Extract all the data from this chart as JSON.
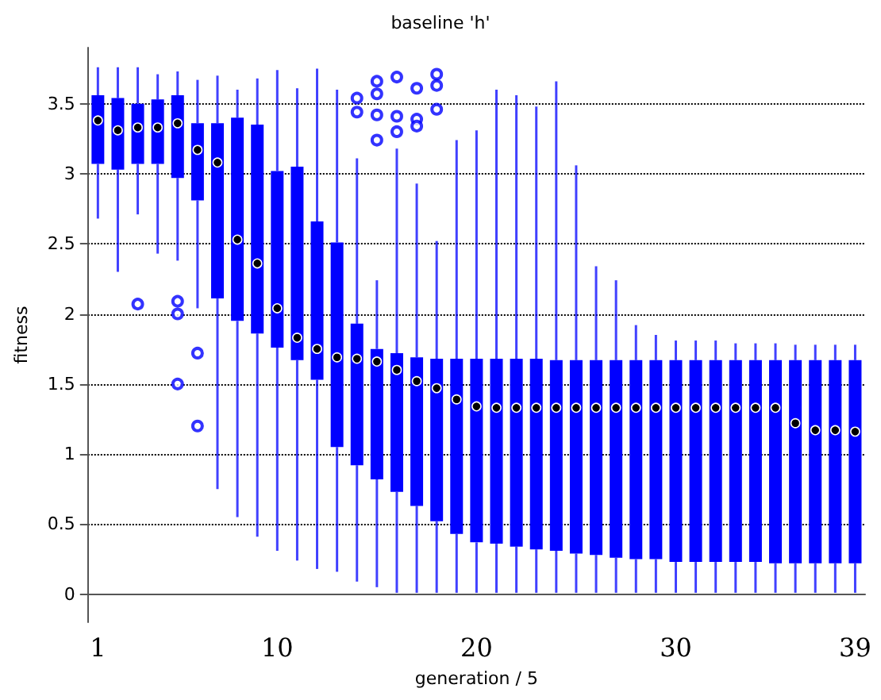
{
  "chart_data": {
    "type": "box",
    "title": "baseline 'h'",
    "xlabel": "generation / 5",
    "ylabel": "fitness",
    "categories": [
      "1",
      null,
      null,
      null,
      null,
      null,
      null,
      null,
      null,
      "10",
      null,
      null,
      null,
      null,
      null,
      null,
      null,
      null,
      null,
      "20",
      null,
      null,
      null,
      null,
      null,
      null,
      null,
      null,
      null,
      "30",
      null,
      null,
      null,
      null,
      null,
      null,
      null,
      null,
      "39"
    ],
    "color": "#0000ff",
    "grid": "y",
    "ylim": [
      -0.2,
      3.9
    ],
    "yticks": [
      0,
      0.5,
      1,
      1.5,
      2,
      2.5,
      3,
      3.5
    ],
    "boxes": [
      {
        "low": 2.68,
        "q1": 3.07,
        "median": 3.38,
        "q3": 3.56,
        "high": 3.76
      },
      {
        "low": 2.3,
        "q1": 3.03,
        "median": 3.31,
        "q3": 3.54,
        "high": 3.76
      },
      {
        "low": 2.71,
        "q1": 3.07,
        "median": 3.33,
        "q3": 3.5,
        "high": 3.76,
        "outliers": [
          2.07
        ]
      },
      {
        "low": 2.43,
        "q1": 3.07,
        "median": 3.33,
        "q3": 3.53,
        "high": 3.71
      },
      {
        "low": 2.38,
        "q1": 2.97,
        "median": 3.36,
        "q3": 3.56,
        "high": 3.73,
        "outliers": [
          2.09,
          2.0,
          1.5
        ]
      },
      {
        "low": 2.04,
        "q1": 2.81,
        "median": 3.17,
        "q3": 3.36,
        "high": 3.67,
        "outliers": [
          1.72,
          1.2
        ]
      },
      {
        "low": 0.75,
        "q1": 2.11,
        "median": 3.08,
        "q3": 3.36,
        "high": 3.7
      },
      {
        "low": 0.55,
        "q1": 1.95,
        "median": 2.53,
        "q3": 3.4,
        "high": 3.6
      },
      {
        "low": 0.41,
        "q1": 1.86,
        "median": 2.36,
        "q3": 3.35,
        "high": 3.68
      },
      {
        "low": 0.31,
        "q1": 1.76,
        "median": 2.04,
        "q3": 3.02,
        "high": 3.74
      },
      {
        "low": 0.24,
        "q1": 1.67,
        "median": 1.83,
        "q3": 3.05,
        "high": 3.61
      },
      {
        "low": 0.18,
        "q1": 1.53,
        "median": 1.75,
        "q3": 2.66,
        "high": 3.75
      },
      {
        "low": 0.16,
        "q1": 1.05,
        "median": 1.69,
        "q3": 2.51,
        "high": 3.6
      },
      {
        "low": 0.09,
        "q1": 0.92,
        "median": 1.68,
        "q3": 1.93,
        "high": 3.11,
        "outliers": [
          3.54,
          3.44
        ]
      },
      {
        "low": 0.05,
        "q1": 0.82,
        "median": 1.66,
        "q3": 1.75,
        "high": 2.24,
        "outliers": [
          3.66,
          3.57,
          3.42,
          3.24
        ]
      },
      {
        "low": 0.01,
        "q1": 0.73,
        "median": 1.6,
        "q3": 1.72,
        "high": 3.18,
        "outliers": [
          3.69,
          3.41,
          3.3
        ]
      },
      {
        "low": 0.01,
        "q1": 0.63,
        "median": 1.52,
        "q3": 1.69,
        "high": 2.93,
        "outliers": [
          3.61,
          3.39,
          3.34
        ]
      },
      {
        "low": 0.01,
        "q1": 0.52,
        "median": 1.47,
        "q3": 1.68,
        "high": 2.52,
        "outliers": [
          3.71,
          3.63,
          3.46
        ]
      },
      {
        "low": 0.01,
        "q1": 0.43,
        "median": 1.39,
        "q3": 1.68,
        "high": 3.24
      },
      {
        "low": 0.01,
        "q1": 0.37,
        "median": 1.34,
        "q3": 1.68,
        "high": 3.31
      },
      {
        "low": 0.01,
        "q1": 0.36,
        "median": 1.33,
        "q3": 1.68,
        "high": 3.6
      },
      {
        "low": 0.01,
        "q1": 0.34,
        "median": 1.33,
        "q3": 1.68,
        "high": 3.56
      },
      {
        "low": 0.01,
        "q1": 0.32,
        "median": 1.33,
        "q3": 1.68,
        "high": 3.48
      },
      {
        "low": 0.01,
        "q1": 0.31,
        "median": 1.33,
        "q3": 1.67,
        "high": 3.66
      },
      {
        "low": 0.01,
        "q1": 0.29,
        "median": 1.33,
        "q3": 1.67,
        "high": 3.06
      },
      {
        "low": 0.01,
        "q1": 0.28,
        "median": 1.33,
        "q3": 1.67,
        "high": 2.34
      },
      {
        "low": 0.01,
        "q1": 0.26,
        "median": 1.33,
        "q3": 1.67,
        "high": 2.24
      },
      {
        "low": 0.01,
        "q1": 0.25,
        "median": 1.33,
        "q3": 1.67,
        "high": 1.92
      },
      {
        "low": 0.01,
        "q1": 0.25,
        "median": 1.33,
        "q3": 1.67,
        "high": 1.85
      },
      {
        "low": 0.01,
        "q1": 0.23,
        "median": 1.33,
        "q3": 1.67,
        "high": 1.81
      },
      {
        "low": 0.01,
        "q1": 0.23,
        "median": 1.33,
        "q3": 1.67,
        "high": 1.81
      },
      {
        "low": 0.01,
        "q1": 0.23,
        "median": 1.33,
        "q3": 1.67,
        "high": 1.81
      },
      {
        "low": 0.01,
        "q1": 0.23,
        "median": 1.33,
        "q3": 1.67,
        "high": 1.79
      },
      {
        "low": 0.01,
        "q1": 0.23,
        "median": 1.33,
        "q3": 1.67,
        "high": 1.79
      },
      {
        "low": 0.01,
        "q1": 0.22,
        "median": 1.33,
        "q3": 1.67,
        "high": 1.79
      },
      {
        "low": 0.01,
        "q1": 0.22,
        "median": 1.22,
        "q3": 1.67,
        "high": 1.78
      },
      {
        "low": 0.01,
        "q1": 0.22,
        "median": 1.17,
        "q3": 1.67,
        "high": 1.78
      },
      {
        "low": 0.01,
        "q1": 0.22,
        "median": 1.17,
        "q3": 1.67,
        "high": 1.78
      },
      {
        "low": 0.01,
        "q1": 0.22,
        "median": 1.16,
        "q3": 1.67,
        "high": 1.78
      }
    ]
  }
}
